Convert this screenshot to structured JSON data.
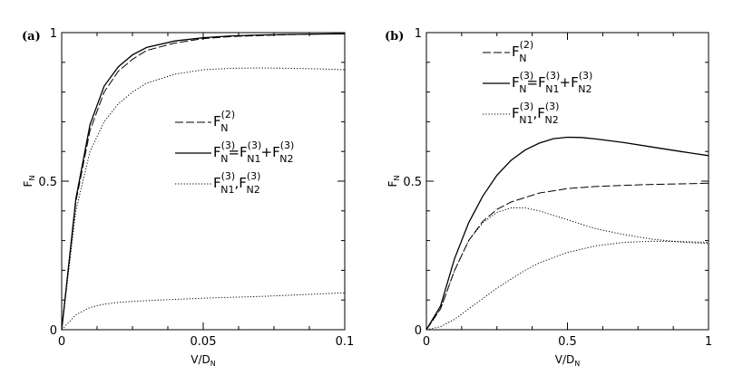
{
  "chart_data": [
    {
      "type": "line",
      "panel_label": "(a)",
      "xlabel": "V/D",
      "xlabel_sub": "N",
      "ylabel": "F",
      "ylabel_sub": "N",
      "xlim": [
        0,
        0.1
      ],
      "ylim": [
        0,
        1
      ],
      "xticks": [
        "0",
        "0.05",
        "0.1"
      ],
      "yticks": [
        "0",
        "0.5",
        "1"
      ],
      "legend_position": "center-right",
      "series": [
        {
          "name": "F_N^(2)",
          "dash": "dashed",
          "x": [
            0,
            0.005,
            0.01,
            0.015,
            0.02,
            0.025,
            0.03,
            0.04,
            0.05,
            0.06,
            0.07,
            0.08,
            0.09,
            0.1
          ],
          "y": [
            0,
            0.43,
            0.67,
            0.8,
            0.87,
            0.91,
            0.94,
            0.965,
            0.98,
            0.987,
            0.99,
            0.993,
            0.995,
            0.996
          ]
        },
        {
          "name": "F_N^(3)=F_N1^(3)+F_N2^(3)",
          "dash": "solid",
          "x": [
            0,
            0.005,
            0.01,
            0.015,
            0.02,
            0.025,
            0.03,
            0.04,
            0.05,
            0.06,
            0.07,
            0.08,
            0.09,
            0.1
          ],
          "y": [
            0,
            0.44,
            0.69,
            0.82,
            0.885,
            0.925,
            0.95,
            0.972,
            0.983,
            0.989,
            0.992,
            0.994,
            0.995,
            0.996
          ]
        },
        {
          "name": "F_N1^(3),F_N2^(3)",
          "dash": "dotted",
          "x": [
            0,
            0.005,
            0.01,
            0.015,
            0.02,
            0.025,
            0.03,
            0.04,
            0.05,
            0.06,
            0.07,
            0.08,
            0.09,
            0.1
          ],
          "y": [
            0,
            0.4,
            0.6,
            0.7,
            0.76,
            0.8,
            0.83,
            0.86,
            0.875,
            0.88,
            0.881,
            0.88,
            0.878,
            0.875
          ]
        },
        {
          "name": "",
          "dash": "dotted",
          "x": [
            0,
            0.005,
            0.01,
            0.015,
            0.02,
            0.03,
            0.04,
            0.05,
            0.06,
            0.07,
            0.08,
            0.09,
            0.1
          ],
          "y": [
            0,
            0.05,
            0.075,
            0.086,
            0.092,
            0.098,
            0.102,
            0.106,
            0.109,
            0.112,
            0.116,
            0.12,
            0.124
          ]
        }
      ],
      "legend": [
        {
          "dash": "dashed",
          "main": "F",
          "sup": "(2)",
          "sub": "N",
          "rest": []
        },
        {
          "dash": "solid",
          "main": "F",
          "sup": "(3)",
          "sub": "N",
          "rest": [
            {
              "op": "=F",
              "sup": "(3)",
              "sub": "N1"
            },
            {
              "op": "+F",
              "sup": "(3)",
              "sub": "N2"
            }
          ]
        },
        {
          "dash": "dotted",
          "main": "F",
          "sup": "(3)",
          "sub": "N1",
          "rest": [
            {
              "op": ",F",
              "sup": "(3)",
              "sub": "N2"
            }
          ]
        }
      ]
    },
    {
      "type": "line",
      "panel_label": "(b)",
      "xlabel": "V/D",
      "xlabel_sub": "N",
      "ylabel": "F",
      "ylabel_sub": "N",
      "xlim": [
        0,
        1
      ],
      "ylim": [
        0,
        1
      ],
      "xticks": [
        "0",
        "0.5",
        "1"
      ],
      "yticks": [
        "0",
        "0.5",
        "1"
      ],
      "legend_position": "top-center",
      "series": [
        {
          "name": "F_N^(2)",
          "dash": "dashed",
          "x": [
            0,
            0.05,
            0.1,
            0.15,
            0.2,
            0.25,
            0.3,
            0.4,
            0.5,
            0.6,
            0.7,
            0.8,
            0.9,
            1.0
          ],
          "y": [
            0,
            0.07,
            0.2,
            0.3,
            0.365,
            0.405,
            0.43,
            0.46,
            0.475,
            0.482,
            0.486,
            0.489,
            0.491,
            0.493
          ]
        },
        {
          "name": "F_N^(3)=F_N1^(3)+F_N2^(3)",
          "dash": "solid",
          "x": [
            0,
            0.05,
            0.1,
            0.15,
            0.2,
            0.25,
            0.3,
            0.35,
            0.4,
            0.45,
            0.5,
            0.55,
            0.6,
            0.7,
            0.8,
            0.9,
            1.0
          ],
          "y": [
            0,
            0.08,
            0.24,
            0.36,
            0.45,
            0.52,
            0.57,
            0.605,
            0.628,
            0.643,
            0.648,
            0.647,
            0.642,
            0.63,
            0.615,
            0.6,
            0.586
          ]
        },
        {
          "name": "F_N1^(3),F_N2^(3)",
          "dash": "dotted",
          "x": [
            0,
            0.05,
            0.1,
            0.15,
            0.2,
            0.25,
            0.3,
            0.35,
            0.4,
            0.5,
            0.6,
            0.7,
            0.8,
            0.9,
            1.0
          ],
          "y": [
            0,
            0.07,
            0.2,
            0.3,
            0.36,
            0.395,
            0.41,
            0.41,
            0.4,
            0.37,
            0.34,
            0.32,
            0.305,
            0.295,
            0.29
          ]
        },
        {
          "name": "",
          "dash": "dotted",
          "x": [
            0,
            0.05,
            0.1,
            0.15,
            0.2,
            0.25,
            0.3,
            0.35,
            0.4,
            0.5,
            0.6,
            0.7,
            0.8,
            0.9,
            1.0
          ],
          "y": [
            0,
            0.01,
            0.035,
            0.07,
            0.105,
            0.14,
            0.17,
            0.2,
            0.225,
            0.26,
            0.282,
            0.294,
            0.298,
            0.297,
            0.294
          ]
        }
      ],
      "legend": [
        {
          "dash": "dashed",
          "main": "F",
          "sup": "(2)",
          "sub": "N",
          "rest": []
        },
        {
          "dash": "solid",
          "main": "F",
          "sup": "(3)",
          "sub": "N",
          "rest": [
            {
              "op": "=F",
              "sup": "(3)",
              "sub": "N1"
            },
            {
              "op": "+F",
              "sup": "(3)",
              "sub": "N2"
            }
          ]
        },
        {
          "dash": "dotted",
          "main": "F",
          "sup": "(3)",
          "sub": "N1",
          "rest": [
            {
              "op": ",F",
              "sup": "(3)",
              "sub": "N2"
            }
          ]
        }
      ]
    }
  ]
}
